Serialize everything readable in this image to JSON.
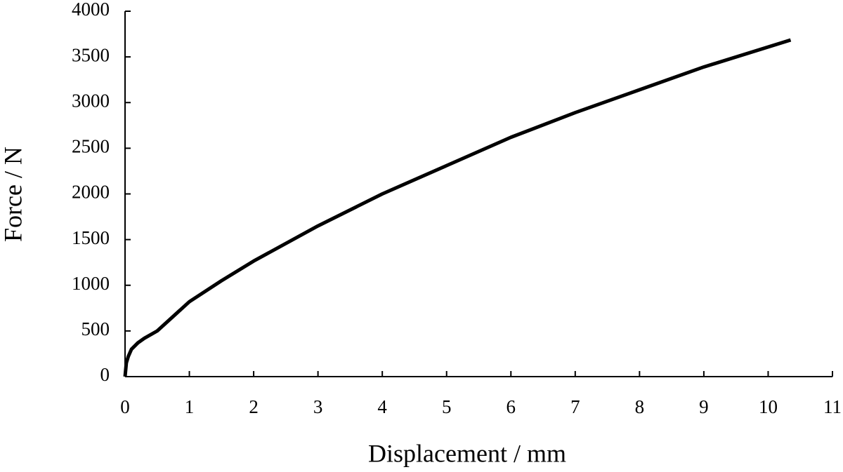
{
  "chart_data": {
    "type": "line",
    "x_label": "Displacement / mm",
    "y_label": "Force / N",
    "x": [
      0,
      0.02,
      0.05,
      0.1,
      0.2,
      0.3,
      0.5,
      1,
      1.5,
      2,
      3,
      4,
      5,
      6,
      7,
      8,
      9,
      10.35
    ],
    "series": [
      {
        "color": "#000000",
        "values": [
          0,
          150,
          220,
          300,
          370,
          420,
          500,
          820,
          1050,
          1265,
          1650,
          2000,
          2310,
          2620,
          2890,
          3140,
          3390,
          3685
        ]
      }
    ],
    "xlim": [
      0,
      11
    ],
    "xticks": [
      0,
      1,
      2,
      3,
      4,
      5,
      6,
      7,
      8,
      9,
      10,
      11
    ],
    "ylim": [
      0,
      4000
    ],
    "yticks": [
      0,
      500,
      1000,
      1500,
      2000,
      2500,
      3000,
      3500,
      4000
    ],
    "grid": false
  }
}
